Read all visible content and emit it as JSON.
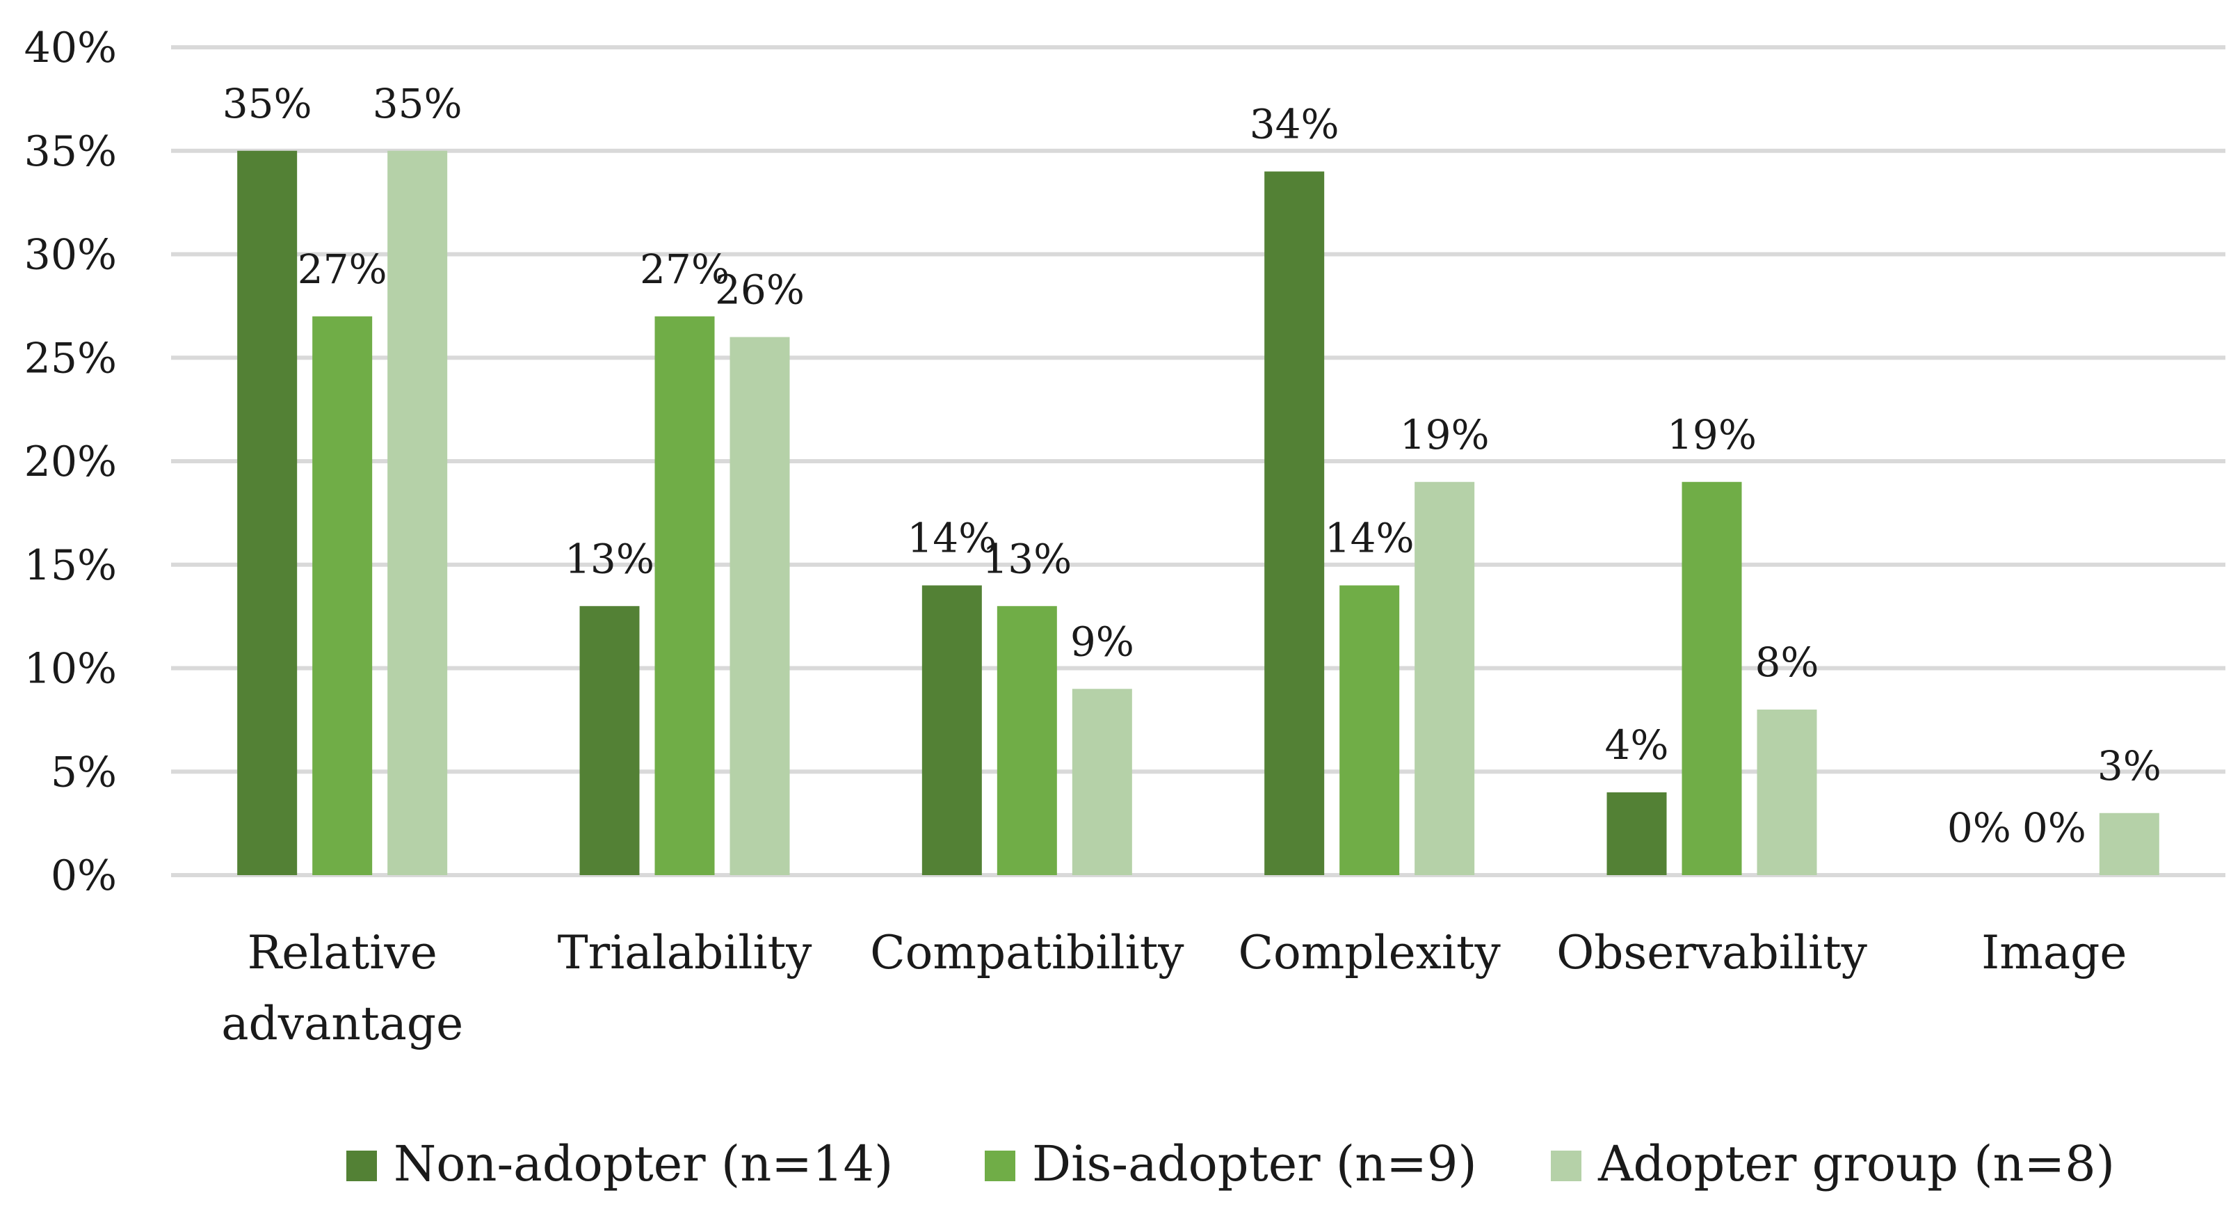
{
  "chart_data": {
    "type": "bar",
    "title": "",
    "xlabel": "",
    "ylabel": "",
    "ylim": [
      0,
      40
    ],
    "yticks": [
      0,
      5,
      10,
      15,
      20,
      25,
      30,
      35,
      40
    ],
    "ytick_suffix": "%",
    "grid": true,
    "legend_position": "bottom",
    "categories": [
      [
        "Relative",
        "advantage"
      ],
      [
        "Trialability"
      ],
      [
        "Compatibility"
      ],
      [
        "Complexity"
      ],
      [
        "Observability"
      ],
      [
        "Image"
      ]
    ],
    "series": [
      {
        "name": "Non-adopter (n=14)",
        "color": "#538135",
        "values": [
          35,
          13,
          14,
          34,
          4,
          0
        ],
        "labels": [
          "35%",
          "13%",
          "14%",
          "34%",
          "4%",
          "0%"
        ]
      },
      {
        "name": "Dis-adopter (n=9)",
        "color": "#70ad47",
        "values": [
          27,
          27,
          13,
          14,
          19,
          0
        ],
        "labels": [
          "27%",
          "27%",
          "13%",
          "14%",
          "19%",
          "0%"
        ]
      },
      {
        "name": "Adopter group (n=8)",
        "color": "#b5d1a8",
        "values": [
          35,
          26,
          9,
          19,
          8,
          3
        ],
        "labels": [
          "35%",
          "26%",
          "9%",
          "19%",
          "8%",
          "3%"
        ]
      }
    ]
  }
}
